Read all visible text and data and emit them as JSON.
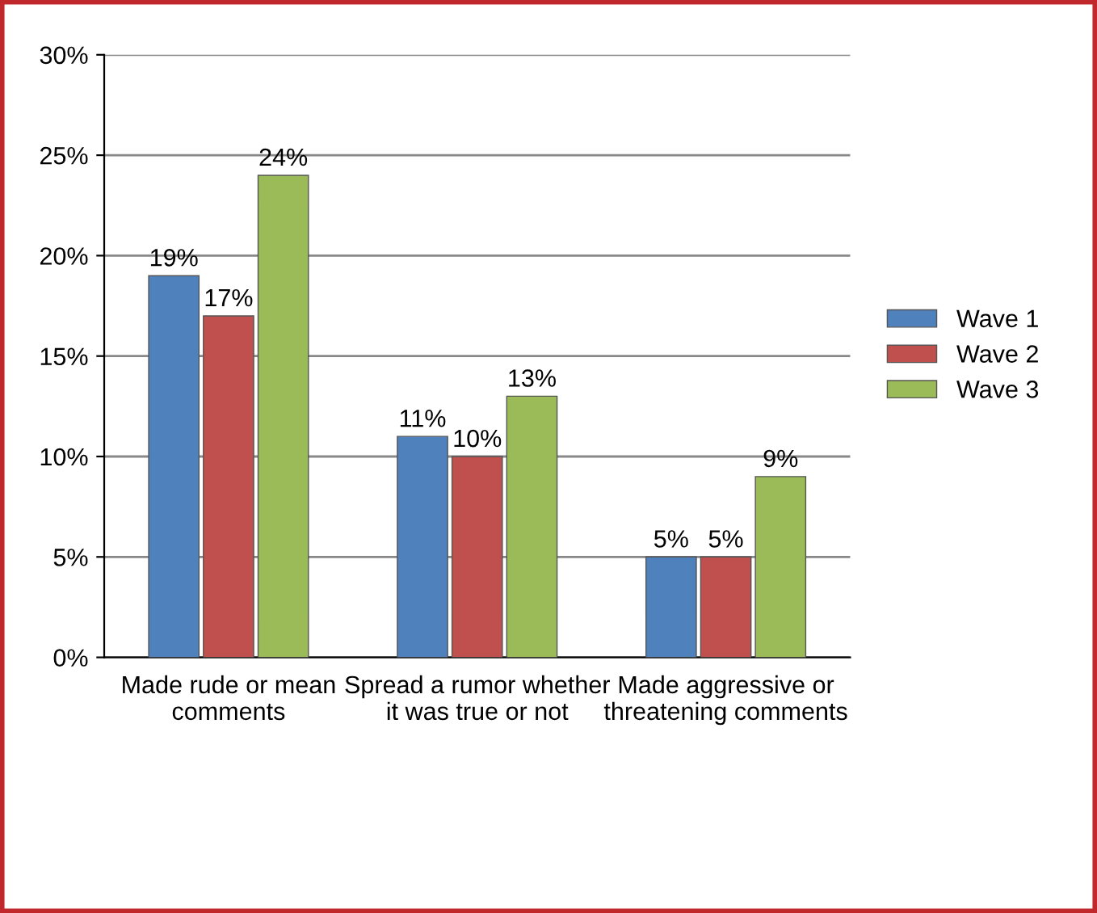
{
  "chart_data": {
    "type": "bar",
    "categories": [
      "Made rude or mean comments",
      "Spread a rumor whether it was true or not",
      "Made aggressive or threatening comments"
    ],
    "series": [
      {
        "name": "Wave 1",
        "color": "#4f81bd",
        "values": [
          19,
          11,
          5
        ],
        "value_labels": [
          "19%",
          "11%",
          "5%"
        ]
      },
      {
        "name": "Wave 2",
        "color": "#c0504d",
        "values": [
          17,
          10,
          5
        ],
        "value_labels": [
          "17%",
          "10%",
          "5%"
        ]
      },
      {
        "name": "Wave 3",
        "color": "#9bbb59",
        "values": [
          24,
          13,
          9
        ],
        "value_labels": [
          "24%",
          "13%",
          "9%"
        ]
      }
    ],
    "ylim": [
      0,
      30
    ],
    "yticks": [
      {
        "value": 0,
        "label": "0%"
      },
      {
        "value": 5,
        "label": "5%"
      },
      {
        "value": 10,
        "label": "10%"
      },
      {
        "value": 15,
        "label": "15%"
      },
      {
        "value": 20,
        "label": "20%"
      },
      {
        "value": 25,
        "label": "25%"
      },
      {
        "value": 30,
        "label": "30%"
      }
    ],
    "grid": "y",
    "legend": "right"
  }
}
